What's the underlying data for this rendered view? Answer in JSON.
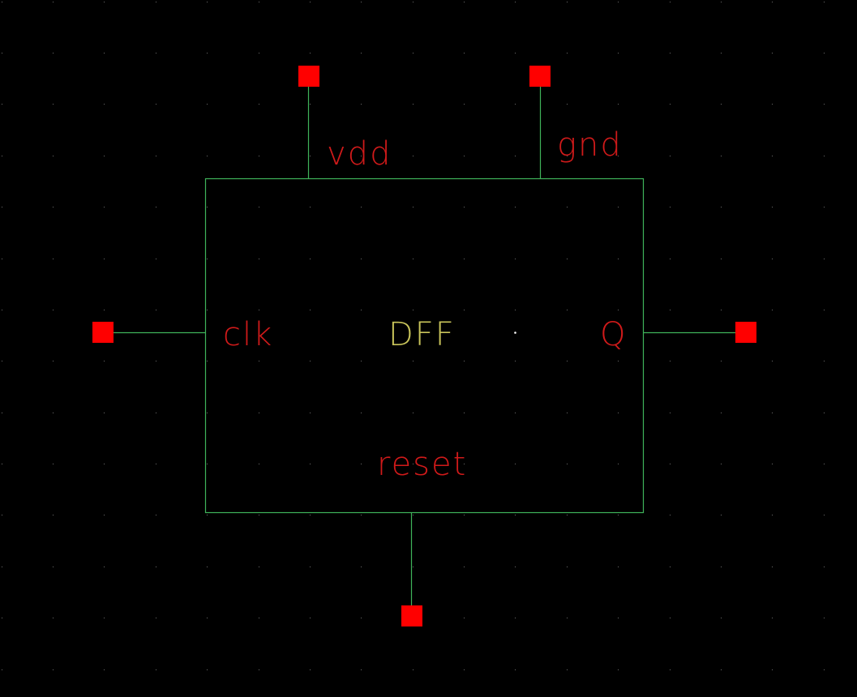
{
  "colors": {
    "background": "#000000",
    "grid_dot": "#6e6e6e",
    "wire": "#3fb35a",
    "pin_terminal": "#ff0000",
    "pin_label": "#d01a1a",
    "cell_label": "#c8c35a",
    "origin_dot": "#ffffff"
  },
  "cell": {
    "name": "DFF"
  },
  "pins": {
    "vdd": {
      "label": "vdd"
    },
    "gnd": {
      "label": "gnd"
    },
    "clk": {
      "label": "clk"
    },
    "q": {
      "label": "Q"
    },
    "reset": {
      "label": "reset"
    }
  }
}
